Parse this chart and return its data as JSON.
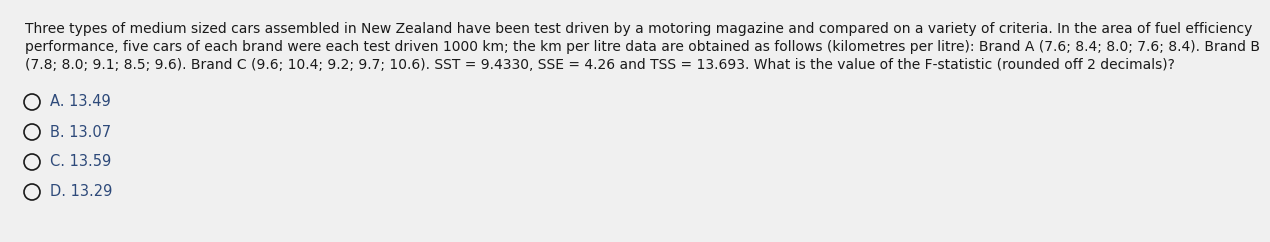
{
  "line1": "Three types of medium sized cars assembled in New Zealand have been test driven by a motoring magazine and compared on a variety of criteria. In the area of fuel efficiency",
  "line2": "performance, five cars of each brand were each test driven 1000 km; the km per litre data are obtained as follows (kilometres per litre): Brand A (7.6; 8.4; 8.0; 7.6; 8.4). Brand B",
  "line3": "(7.8; 8.0; 9.1; 8.5; 9.6). Brand C (9.6; 10.4; 9.2; 9.7; 10.6). SST = 9.4330, SSE = 4.26 and TSS = 13.693. What is the value of the F-statistic (rounded off 2 decimals)?",
  "options": [
    "A. 13.49",
    "B. 13.07",
    "C. 13.59",
    "D. 13.29"
  ],
  "bg_color": "#f0f0f0",
  "text_color": "#1a1a1a",
  "option_color": "#2e4a7a",
  "font_size": 10.0,
  "option_font_size": 10.5
}
